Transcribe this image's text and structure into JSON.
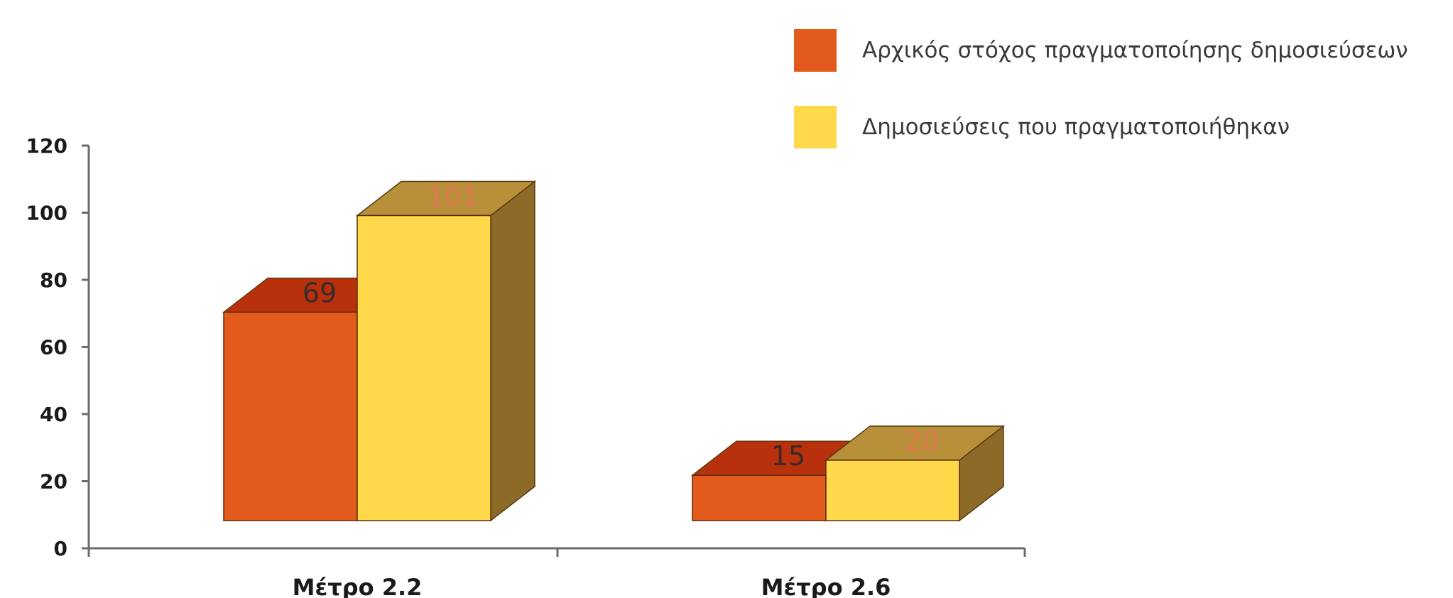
{
  "chart_data": {
    "type": "bar",
    "categories": [
      "Μέτρο 2.2",
      "Μέτρο 2.6"
    ],
    "series": [
      {
        "name": "Αρχικός στόχος πραγματοποίησης δημοσιεύσεων",
        "values": [
          69,
          15
        ],
        "data_labels": [
          "69",
          "15"
        ],
        "color": "#e25a1c",
        "top_color": "#b8300c",
        "side_color": "#8a2a0a",
        "label_color": "#3a2a2a"
      },
      {
        "name": "Δημοσιεύσεις που πραγματοποιήθηκαν",
        "values": [
          101,
          20
        ],
        "data_labels": [
          "101",
          "20"
        ],
        "color": "#ffd94a",
        "top_color": "#b8903a",
        "side_color": "#8c6a28",
        "label_color": "#e07850"
      }
    ],
    "ylim": [
      0,
      120
    ],
    "yticks": [
      "0",
      "20",
      "40",
      "60",
      "80",
      "100",
      "120"
    ],
    "legend_position": "top-right",
    "grid": false,
    "bar_style": "3d"
  }
}
